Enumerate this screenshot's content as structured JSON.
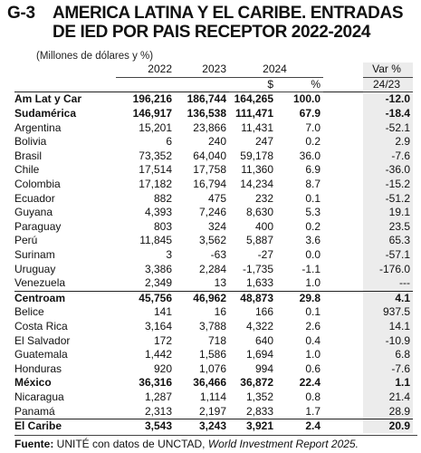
{
  "header": {
    "code": "G-3",
    "title_line1": "AMERICA LATINA Y EL CARIBE. ENTRADAS",
    "title_line2": "DE IED POR PAIS RECEPTOR 2022-2024",
    "subtitle": "(Millones de dólares y %)"
  },
  "columns": {
    "y2022": "2022",
    "y2023": "2023",
    "y2024": "2024",
    "usd": "$",
    "pct": "%",
    "var": "Var %",
    "var_period": "24/23"
  },
  "rows": [
    {
      "name": "Am Lat y Car",
      "v2022": "196,216",
      "v2023": "186,744",
      "v2024": "164,265",
      "pct": "100.0",
      "var": "-12.0",
      "bold": true,
      "sep": true
    },
    {
      "name": "Sudamérica",
      "v2022": "146,917",
      "v2023": "136,538",
      "v2024": "111,471",
      "pct": "67.9",
      "var": "-18.4",
      "bold": true,
      "sep": false
    },
    {
      "name": "Argentina",
      "v2022": "15,201",
      "v2023": "23,866",
      "v2024": "11,431",
      "pct": "7.0",
      "var": "-52.1"
    },
    {
      "name": "Bolivia",
      "v2022": "6",
      "v2023": "240",
      "v2024": "247",
      "pct": "0.2",
      "var": "2.9"
    },
    {
      "name": "Brasil",
      "v2022": "73,352",
      "v2023": "64,040",
      "v2024": "59,178",
      "pct": "36.0",
      "var": "-7.6"
    },
    {
      "name": "Chile",
      "v2022": "17,514",
      "v2023": "17,758",
      "v2024": "11,360",
      "pct": "6.9",
      "var": "-36.0"
    },
    {
      "name": "Colombia",
      "v2022": "17,182",
      "v2023": "16,794",
      "v2024": "14,234",
      "pct": "8.7",
      "var": "-15.2"
    },
    {
      "name": "Ecuador",
      "v2022": "882",
      "v2023": "475",
      "v2024": "232",
      "pct": "0.1",
      "var": "-51.2"
    },
    {
      "name": "Guyana",
      "v2022": "4,393",
      "v2023": "7,246",
      "v2024": "8,630",
      "pct": "5.3",
      "var": "19.1"
    },
    {
      "name": "Paraguay",
      "v2022": "803",
      "v2023": "324",
      "v2024": "400",
      "pct": "0.2",
      "var": "23.5"
    },
    {
      "name": "Perú",
      "v2022": "11,845",
      "v2023": "3,562",
      "v2024": "5,887",
      "pct": "3.6",
      "var": "65.3"
    },
    {
      "name": "Surinam",
      "v2022": "3",
      "v2023": "-63",
      "v2024": "-27",
      "pct": "0.0",
      "var": "-57.1"
    },
    {
      "name": "Uruguay",
      "v2022": "3,386",
      "v2023": "2,284",
      "v2024": "-1,735",
      "pct": "-1.1",
      "var": "-176.0"
    },
    {
      "name": "Venezuela",
      "v2022": "2,349",
      "v2023": "13",
      "v2024": "1,633",
      "pct": "1.0",
      "var": "---"
    },
    {
      "name": "Centroam",
      "v2022": "45,756",
      "v2023": "46,962",
      "v2024": "48,873",
      "pct": "29.8",
      "var": "4.1",
      "bold": true,
      "sep": true
    },
    {
      "name": "Belice",
      "v2022": "141",
      "v2023": "16",
      "v2024": "166",
      "pct": "0.1",
      "var": "937.5"
    },
    {
      "name": "Costa Rica",
      "v2022": "3,164",
      "v2023": "3,788",
      "v2024": "4,322",
      "pct": "2.6",
      "var": "14.1"
    },
    {
      "name": "El Salvador",
      "v2022": "172",
      "v2023": "718",
      "v2024": "640",
      "pct": "0.4",
      "var": "-10.9"
    },
    {
      "name": "Guatemala",
      "v2022": "1,442",
      "v2023": "1,586",
      "v2024": "1,694",
      "pct": "1.0",
      "var": "6.8"
    },
    {
      "name": "Honduras",
      "v2022": "920",
      "v2023": "1,076",
      "v2024": "994",
      "pct": "0.6",
      "var": "-7.6"
    },
    {
      "name": "México",
      "v2022": "36,316",
      "v2023": "36,466",
      "v2024": "36,872",
      "pct": "22.4",
      "var": "1.1",
      "bold": true
    },
    {
      "name": "Nicaragua",
      "v2022": "1,287",
      "v2023": "1,114",
      "v2024": "1,352",
      "pct": "0.8",
      "var": "21.4"
    },
    {
      "name": "Panamá",
      "v2022": "2,313",
      "v2023": "2,197",
      "v2024": "2,833",
      "pct": "1.7",
      "var": "28.9"
    },
    {
      "name": "El Caribe",
      "v2022": "3,543",
      "v2023": "3,243",
      "v2024": "3,921",
      "pct": "2.4",
      "var": "20.9",
      "bold": true,
      "sep": true
    }
  ],
  "footer": {
    "label": "Fuente:",
    "text": " UNITÉ con datos de UNCTAD, ",
    "italic": "World Investment Report 2025."
  }
}
